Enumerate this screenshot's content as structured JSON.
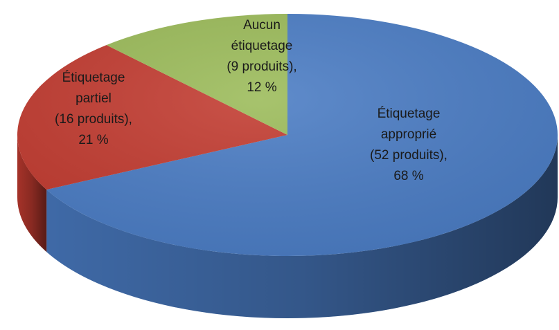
{
  "chart_data": {
    "type": "pie",
    "categories": [
      "Étiquetage approprié",
      "Étiquetage partiel",
      "Aucun étiquetage"
    ],
    "counts": [
      52,
      16,
      9
    ],
    "count_labels": [
      "(52 produits),",
      "(16 produits),",
      "(9 produits),"
    ],
    "values": [
      68,
      21,
      12
    ],
    "value_labels": [
      "68 %",
      "21 %",
      "12 %"
    ],
    "colors": [
      "#4a7cc4",
      "#c23b30",
      "#9bbb59"
    ]
  }
}
